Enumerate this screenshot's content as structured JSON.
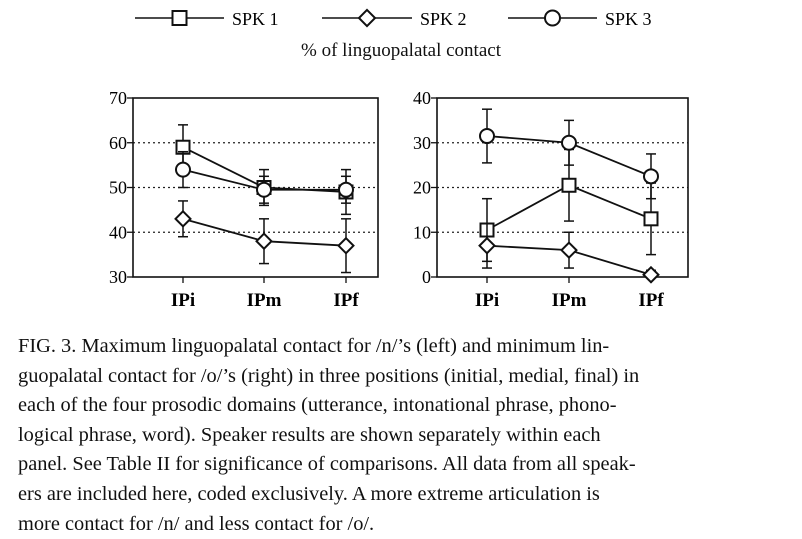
{
  "legend": [
    {
      "name": "SPK 1",
      "marker": "square"
    },
    {
      "name": "SPK 2",
      "marker": "diamond"
    },
    {
      "name": "SPK 3",
      "marker": "circle"
    }
  ],
  "subtitle": "% of linguopalatal contact",
  "chart_data": [
    {
      "type": "line",
      "title": "",
      "categories": [
        "IPi",
        "IPm",
        "IPf"
      ],
      "ylim": [
        30,
        70
      ],
      "yticks": [
        "30",
        "40",
        "50",
        "60",
        "70"
      ],
      "grid": "dotted horizontal",
      "series": [
        {
          "name": "SPK 1",
          "marker": "square",
          "values": [
            59,
            50,
            49
          ],
          "err": [
            5,
            4,
            5
          ]
        },
        {
          "name": "SPK 2",
          "marker": "diamond",
          "values": [
            43,
            38,
            37
          ],
          "err": [
            4,
            5,
            6
          ]
        },
        {
          "name": "SPK 3",
          "marker": "circle",
          "values": [
            54,
            49.5,
            49.5
          ],
          "err": [
            4,
            3,
            3
          ]
        }
      ]
    },
    {
      "type": "line",
      "title": "",
      "categories": [
        "IPi",
        "IPm",
        "IPf"
      ],
      "ylim": [
        0,
        40
      ],
      "yticks": [
        "0",
        "10",
        "20",
        "30",
        "40"
      ],
      "grid": "dotted horizontal",
      "series": [
        {
          "name": "SPK 1",
          "marker": "square",
          "values": [
            10.5,
            20.5,
            13
          ],
          "err": [
            7,
            8,
            8
          ]
        },
        {
          "name": "SPK 2",
          "marker": "diamond",
          "values": [
            7,
            6,
            0.5
          ],
          "err": [
            5,
            4,
            1
          ]
        },
        {
          "name": "SPK 3",
          "marker": "circle",
          "values": [
            31.5,
            30,
            22.5
          ],
          "err": [
            6,
            5,
            5
          ]
        }
      ]
    }
  ],
  "caption": [
    "FIG. 3. Maximum linguopalatal contact for /n/’s (left) and minimum lin-",
    "guopalatal contact for /o/’s (right) in three positions (initial, medial, final) in",
    "each of the four prosodic domains (utterance, intonational phrase, phono-",
    "logical phrase, word). Speaker results are shown separately within each",
    "panel. See Table II for significance of comparisons. All data from all speak-",
    "ers are included here, coded exclusively. A more extreme articulation is",
    "more contact for /n/ and less contact for /o/."
  ]
}
